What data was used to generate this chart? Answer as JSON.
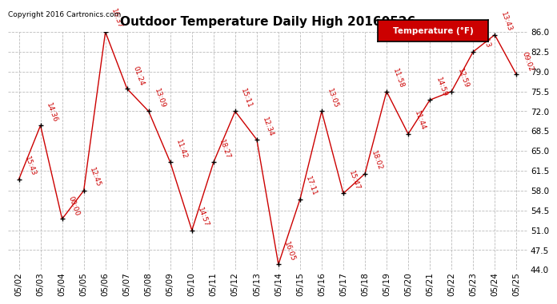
{
  "title": "Outdoor Temperature Daily High 20160526",
  "copyright": "Copyright 2016 Cartronics.com",
  "legend_label": "Temperature (°F)",
  "dates": [
    "05/02",
    "05/03",
    "05/04",
    "05/05",
    "05/06",
    "05/07",
    "05/08",
    "05/09",
    "05/10",
    "05/11",
    "05/12",
    "05/13",
    "05/14",
    "05/15",
    "05/16",
    "05/17",
    "05/18",
    "05/19",
    "05/20",
    "05/21",
    "05/22",
    "05/23",
    "05/24",
    "05/25"
  ],
  "values": [
    60.0,
    69.5,
    53.0,
    58.0,
    86.0,
    76.0,
    72.0,
    63.0,
    51.0,
    63.0,
    72.0,
    67.0,
    45.0,
    56.5,
    72.0,
    57.5,
    61.0,
    75.5,
    68.0,
    74.0,
    75.5,
    82.5,
    85.5,
    78.5
  ],
  "labels": [
    "15:43",
    "14:36",
    "00:00",
    "12:45",
    "16:37",
    "01:24",
    "13:09",
    "11:42",
    "14:57",
    "18:27",
    "15:11",
    "12:34",
    "16:05",
    "17:11",
    "13:05",
    "15:47",
    "18:02",
    "11:58",
    "11:44",
    "14:59",
    "12:59",
    "13:13",
    "13:43",
    "09:02"
  ],
  "line_color": "#cc0000",
  "marker_color": "#000000",
  "label_color": "#cc0000",
  "bg_color": "#ffffff",
  "grid_color": "#bbbbbb",
  "ylim": [
    44.0,
    86.0
  ],
  "yticks": [
    44.0,
    47.5,
    51.0,
    54.5,
    58.0,
    61.5,
    65.0,
    68.5,
    72.0,
    75.5,
    79.0,
    82.5,
    86.0
  ],
  "legend_bg": "#cc0000",
  "legend_text_color": "#ffffff",
  "title_fontsize": 11,
  "label_fontsize": 6.5,
  "tick_fontsize": 7.5,
  "copyright_fontsize": 6.5
}
